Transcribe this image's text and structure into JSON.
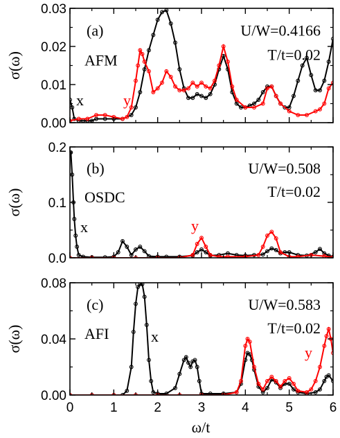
{
  "x_axis": {
    "label": "ω/t",
    "range": [
      0,
      6
    ],
    "ticks": [
      0,
      1,
      2,
      3,
      4,
      5,
      6
    ]
  },
  "y_axis_label": "σ(ω)",
  "chart_data": [
    {
      "type": "line",
      "panel_label": "(a)",
      "phase_label": "AFM",
      "param_label": "U/W=0.4166",
      "temp_label": "T/t=0.02",
      "ylim": [
        0,
        0.03
      ],
      "yticks": [
        0,
        0.01,
        0.02,
        0.03
      ],
      "ytick_labels": [
        "0.00",
        "0.01",
        "0.02",
        "0.03"
      ],
      "grid": false,
      "series": [
        {
          "name": "x",
          "color": "#000000",
          "x": [
            0.0,
            0.05,
            0.1,
            0.2,
            0.3,
            0.4,
            0.5,
            0.6,
            0.8,
            1.0,
            1.2,
            1.4,
            1.5,
            1.6,
            1.7,
            1.8,
            1.9,
            2.0,
            2.1,
            2.2,
            2.3,
            2.4,
            2.5,
            2.6,
            2.7,
            2.8,
            2.9,
            3.0,
            3.1,
            3.2,
            3.3,
            3.4,
            3.5,
            3.6,
            3.7,
            3.8,
            3.9,
            4.0,
            4.1,
            4.2,
            4.3,
            4.4,
            4.5,
            4.6,
            4.7,
            4.8,
            4.9,
            5.0,
            5.1,
            5.2,
            5.3,
            5.4,
            5.5,
            5.6,
            5.7,
            5.8,
            5.9,
            6.0
          ],
          "y": [
            0.006,
            0.004,
            0.001,
            0.0005,
            0.0005,
            0.0005,
            0.0005,
            0.001,
            0.001,
            0.001,
            0.001,
            0.002,
            0.004,
            0.008,
            0.014,
            0.019,
            0.023,
            0.027,
            0.029,
            0.0295,
            0.026,
            0.021,
            0.014,
            0.009,
            0.0065,
            0.0065,
            0.0075,
            0.007,
            0.0065,
            0.0075,
            0.01,
            0.014,
            0.0175,
            0.014,
            0.008,
            0.005,
            0.004,
            0.004,
            0.0045,
            0.005,
            0.006,
            0.008,
            0.0095,
            0.0095,
            0.007,
            0.005,
            0.004,
            0.004,
            0.007,
            0.011,
            0.015,
            0.017,
            0.0125,
            0.0085,
            0.0085,
            0.011,
            0.016,
            0.022
          ]
        },
        {
          "name": "y",
          "color": "#ff0000",
          "x": [
            0.0,
            0.2,
            0.4,
            0.6,
            0.8,
            1.0,
            1.2,
            1.3,
            1.4,
            1.5,
            1.55,
            1.6,
            1.65,
            1.7,
            1.8,
            1.9,
            2.0,
            2.1,
            2.2,
            2.3,
            2.4,
            2.5,
            2.6,
            2.7,
            2.8,
            2.9,
            3.0,
            3.1,
            3.2,
            3.3,
            3.4,
            3.5,
            3.6,
            3.7,
            3.8,
            4.0,
            4.2,
            4.4,
            4.5,
            4.6,
            4.7,
            4.8,
            5.0,
            5.2,
            5.4,
            5.6,
            5.7,
            5.8,
            5.9,
            6.0
          ],
          "y": [
            0.0005,
            0.001,
            0.001,
            0.002,
            0.002,
            0.0015,
            0.001,
            0.0015,
            0.004,
            0.011,
            0.015,
            0.019,
            0.018,
            0.016,
            0.0135,
            0.008,
            0.009,
            0.0105,
            0.0135,
            0.012,
            0.0095,
            0.0085,
            0.0085,
            0.009,
            0.0105,
            0.0095,
            0.0105,
            0.0095,
            0.009,
            0.011,
            0.015,
            0.02,
            0.016,
            0.0095,
            0.006,
            0.004,
            0.004,
            0.005,
            0.009,
            0.0095,
            0.007,
            0.005,
            0.003,
            0.002,
            0.002,
            0.003,
            0.0035,
            0.005,
            0.009,
            0.0105
          ]
        }
      ]
    },
    {
      "type": "line",
      "panel_label": "(b)",
      "phase_label": "OSDC",
      "param_label": "U/W=0.508",
      "temp_label": "T/t=0.02",
      "ylim": [
        0,
        0.2
      ],
      "yticks": [
        0,
        0.1,
        0.2
      ],
      "ytick_labels": [
        "0.0",
        "0.1",
        "0.2"
      ],
      "grid": false,
      "series": [
        {
          "name": "x",
          "color": "#000000",
          "x": [
            0.0,
            0.02,
            0.05,
            0.08,
            0.1,
            0.13,
            0.16,
            0.2,
            0.3,
            0.5,
            0.8,
            1.0,
            1.1,
            1.2,
            1.3,
            1.4,
            1.5,
            1.6,
            1.7,
            1.8,
            2.0,
            2.2,
            2.5,
            2.8,
            2.9,
            3.0,
            3.1,
            3.2,
            3.4,
            3.6,
            3.8,
            4.0,
            4.2,
            4.4,
            4.5,
            4.6,
            4.7,
            4.8,
            4.9,
            5.0,
            5.2,
            5.4,
            5.6,
            5.7,
            5.8,
            5.9,
            6.0
          ],
          "y": [
            0.19,
            0.19,
            0.15,
            0.1,
            0.07,
            0.04,
            0.02,
            0.005,
            0.002,
            0.001,
            0.001,
            0.002,
            0.01,
            0.03,
            0.02,
            0.005,
            0.015,
            0.02,
            0.012,
            0.003,
            0.002,
            0.002,
            0.002,
            0.004,
            0.01,
            0.015,
            0.01,
            0.004,
            0.005,
            0.008,
            0.005,
            0.004,
            0.005,
            0.006,
            0.012,
            0.017,
            0.014,
            0.008,
            0.01,
            0.01,
            0.005,
            0.004,
            0.01,
            0.016,
            0.008,
            0.004,
            0.002
          ]
        },
        {
          "name": "y",
          "color": "#ff0000",
          "x": [
            0.0,
            0.5,
            1.0,
            1.5,
            2.0,
            2.5,
            2.8,
            2.9,
            3.0,
            3.1,
            3.2,
            3.4,
            3.6,
            4.0,
            4.3,
            4.4,
            4.5,
            4.6,
            4.7,
            4.8,
            5.0,
            5.2,
            5.5,
            5.8,
            6.0
          ],
          "y": [
            0.0,
            0.0,
            0.0,
            0.0,
            0.0,
            0.0,
            0.005,
            0.025,
            0.036,
            0.02,
            0.005,
            0.002,
            0.002,
            0.002,
            0.005,
            0.02,
            0.04,
            0.047,
            0.035,
            0.01,
            0.002,
            0.002,
            0.005,
            0.003,
            0.001
          ]
        }
      ]
    },
    {
      "type": "line",
      "panel_label": "(c)",
      "phase_label": "AFI",
      "param_label": "U/W=0.583",
      "temp_label": "T/t=0.02",
      "ylim": [
        0,
        0.08
      ],
      "yticks": [
        0,
        0.04,
        0.08
      ],
      "ytick_labels": [
        "0.00",
        "0.04",
        "0.08"
      ],
      "grid": false,
      "series": [
        {
          "name": "x",
          "color": "#000000",
          "x": [
            0.0,
            0.5,
            1.0,
            1.2,
            1.3,
            1.4,
            1.45,
            1.5,
            1.55,
            1.6,
            1.65,
            1.7,
            1.75,
            1.8,
            1.85,
            1.9,
            2.0,
            2.2,
            2.4,
            2.5,
            2.6,
            2.65,
            2.7,
            2.75,
            2.8,
            2.85,
            2.9,
            2.95,
            3.0,
            3.2,
            3.5,
            3.8,
            3.9,
            4.0,
            4.05,
            4.1,
            4.15,
            4.2,
            4.3,
            4.4,
            4.5,
            4.6,
            4.7,
            4.8,
            4.9,
            5.0,
            5.1,
            5.2,
            5.4,
            5.6,
            5.7,
            5.8,
            5.85,
            5.9,
            6.0
          ],
          "y": [
            0.0,
            0.0,
            0.0,
            0.0,
            0.003,
            0.02,
            0.045,
            0.065,
            0.077,
            0.079,
            0.079,
            0.07,
            0.05,
            0.025,
            0.01,
            0.002,
            0.001,
            0.001,
            0.005,
            0.015,
            0.025,
            0.027,
            0.023,
            0.02,
            0.024,
            0.025,
            0.02,
            0.01,
            0.001,
            0.001,
            0.001,
            0.002,
            0.008,
            0.025,
            0.03,
            0.029,
            0.025,
            0.018,
            0.006,
            0.002,
            0.005,
            0.011,
            0.009,
            0.005,
            0.008,
            0.008,
            0.004,
            0.002,
            0.001,
            0.002,
            0.004,
            0.01,
            0.013,
            0.014,
            0.01
          ]
        },
        {
          "name": "y",
          "color": "#ff0000",
          "x": [
            0.0,
            0.5,
            1.0,
            1.5,
            2.0,
            2.5,
            3.0,
            3.5,
            3.8,
            3.9,
            4.0,
            4.05,
            4.1,
            4.2,
            4.3,
            4.4,
            4.5,
            4.6,
            4.7,
            4.8,
            4.9,
            5.0,
            5.1,
            5.2,
            5.4,
            5.5,
            5.6,
            5.7,
            5.8,
            5.85,
            5.9,
            5.95,
            6.0
          ],
          "y": [
            0.0,
            0.0,
            0.0,
            0.0,
            0.0,
            0.0,
            0.0,
            0.0,
            0.002,
            0.01,
            0.035,
            0.04,
            0.038,
            0.02,
            0.008,
            0.004,
            0.01,
            0.013,
            0.01,
            0.006,
            0.01,
            0.012,
            0.008,
            0.003,
            0.002,
            0.004,
            0.01,
            0.02,
            0.035,
            0.042,
            0.047,
            0.04,
            0.03
          ]
        }
      ]
    }
  ]
}
